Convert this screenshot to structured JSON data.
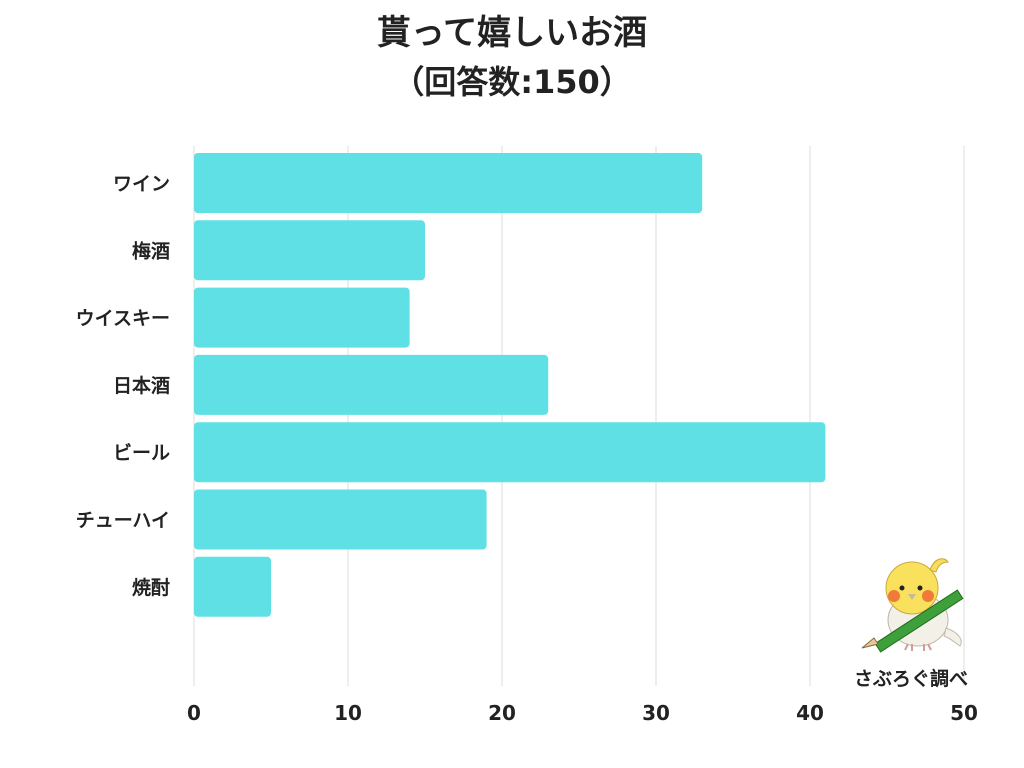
{
  "chart_data": {
    "type": "bar",
    "orientation": "horizontal",
    "title": "貰って嬉しいお酒",
    "subtitle": "（回答数:150）",
    "categories": [
      "ワイン",
      "梅酒",
      "ウイスキー",
      "日本酒",
      "ビール",
      "チューハイ",
      "焼酎"
    ],
    "values": [
      33,
      15,
      14,
      23,
      41,
      19,
      5
    ],
    "xlim": [
      0,
      50
    ],
    "xticks": [
      0,
      10,
      20,
      30,
      40,
      50
    ],
    "grid": true,
    "bar_color": "#5ee0e5",
    "grid_color": "#dddddd"
  },
  "credit": {
    "text": "さぶろぐ調べ",
    "icon": "cockatiel-with-pencil-icon"
  }
}
